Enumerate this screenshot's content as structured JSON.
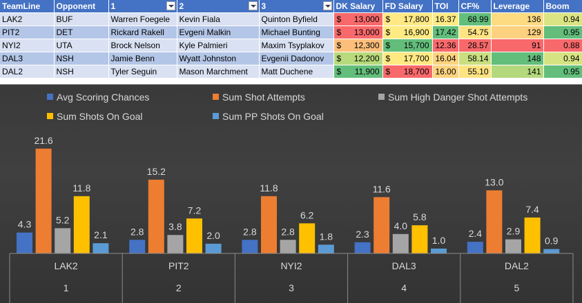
{
  "table": {
    "headers": [
      "TeamLine",
      "Opponent",
      "1",
      "2",
      "3",
      "DK Salary",
      "FD Salary",
      "TOI",
      "CF%",
      "Leverage",
      "Boom"
    ],
    "rows": [
      {
        "teamline": "LAK2",
        "opponent": "BUF",
        "p1": "Warren Foegele",
        "p2": "Kevin Fiala",
        "p3": "Quinton Byfield",
        "dk": "13,000",
        "fd": "17,800",
        "toi": "16.37",
        "cf": "68.99",
        "lev": "136",
        "boom": "0.94"
      },
      {
        "teamline": "PIT2",
        "opponent": "DET",
        "p1": "Rickard Rakell",
        "p2": "Evgeni Malkin",
        "p3": "Michael Bunting",
        "dk": "13,000",
        "fd": "16,900",
        "toi": "17.42",
        "cf": "54.75",
        "lev": "129",
        "boom": "0.95"
      },
      {
        "teamline": "NYI2",
        "opponent": "UTA",
        "p1": "Brock Nelson",
        "p2": "Kyle Palmieri",
        "p3": "Maxim Tsyplakov",
        "dk": "12,300",
        "fd": "15,700",
        "toi": "12.36",
        "cf": "28.57",
        "lev": "91",
        "boom": "0.88"
      },
      {
        "teamline": "DAL3",
        "opponent": "NSH",
        "p1": "Jamie Benn",
        "p2": "Wyatt Johnston",
        "p3": "Evgenii Dadonov",
        "dk": "12,200",
        "fd": "17,700",
        "toi": "16.04",
        "cf": "58.14",
        "lev": "148",
        "boom": "0.94"
      },
      {
        "teamline": "DAL2",
        "opponent": "NSH",
        "p1": "Tyler Seguin",
        "p2": "Mason Marchment",
        "p3": "Matt Duchene",
        "dk": "11,900",
        "fd": "18,700",
        "toi": "16.00",
        "cf": "55.10",
        "lev": "141",
        "boom": "0.95"
      }
    ],
    "currency_symbol": "$",
    "cell_colors": {
      "dk": [
        "#f8696b",
        "#f8696b",
        "#fcbf7b",
        "#b8da7c",
        "#63be7b"
      ],
      "fd": [
        "#ffe984",
        "#ffeb84",
        "#63be7b",
        "#fee983",
        "#f8696b"
      ],
      "toi": [
        "#ffeb84",
        "#63be7b",
        "#f8696b",
        "#fcd47f",
        "#fcd37f"
      ],
      "cf": [
        "#63be7b",
        "#ffe483",
        "#f8696b",
        "#c9df80",
        "#fee382"
      ],
      "lev": [
        "#fddb81",
        "#fed180",
        "#f8696b",
        "#63be7b",
        "#b4d97d"
      ],
      "boom": [
        "#dbe482",
        "#63be7b",
        "#f8696b",
        "#d6e382",
        "#63be7b"
      ]
    }
  },
  "chart_data": {
    "type": "bar",
    "categories": [
      {
        "label": "LAK2",
        "index": "1"
      },
      {
        "label": "PIT2",
        "index": "2"
      },
      {
        "label": "NYI2",
        "index": "3"
      },
      {
        "label": "DAL3",
        "index": "4"
      },
      {
        "label": "DAL2",
        "index": "5"
      }
    ],
    "series": [
      {
        "name": "Avg Scoring Chances",
        "color": "#4472c4",
        "values": [
          4.3,
          2.8,
          2.8,
          2.3,
          2.4
        ],
        "labels": [
          "4.3",
          "2.8",
          "2.8",
          "2.3",
          "2.4"
        ]
      },
      {
        "name": "Sum Shot Attempts",
        "color": "#ed7d31",
        "values": [
          21.6,
          15.2,
          11.8,
          11.6,
          13.0
        ],
        "labels": [
          "21.6",
          "15.2",
          "11.8",
          "11.6",
          "13.0"
        ]
      },
      {
        "name": "Sum High Danger Shot Attempts",
        "color": "#a5a5a5",
        "values": [
          5.2,
          3.8,
          2.8,
          4.0,
          2.9
        ],
        "labels": [
          "5.2",
          "3.8",
          "2.8",
          "4.0",
          "2.9"
        ]
      },
      {
        "name": "Sum Shots On Goal",
        "color": "#ffc000",
        "values": [
          11.8,
          7.2,
          6.2,
          5.8,
          7.4
        ],
        "labels": [
          "11.8",
          "7.2",
          "6.2",
          "5.8",
          "7.4"
        ]
      },
      {
        "name": "Sum PP Shots On Goal",
        "color": "#5b9bd5",
        "values": [
          2.1,
          2.0,
          1.8,
          1.0,
          0.9
        ],
        "labels": [
          "2.1",
          "2.0",
          "1.8",
          "1.0",
          "0.9"
        ]
      }
    ],
    "ylim": [
      0,
      22
    ],
    "grid": false,
    "legend": "top",
    "title": "",
    "xlabel": "",
    "ylabel": ""
  }
}
